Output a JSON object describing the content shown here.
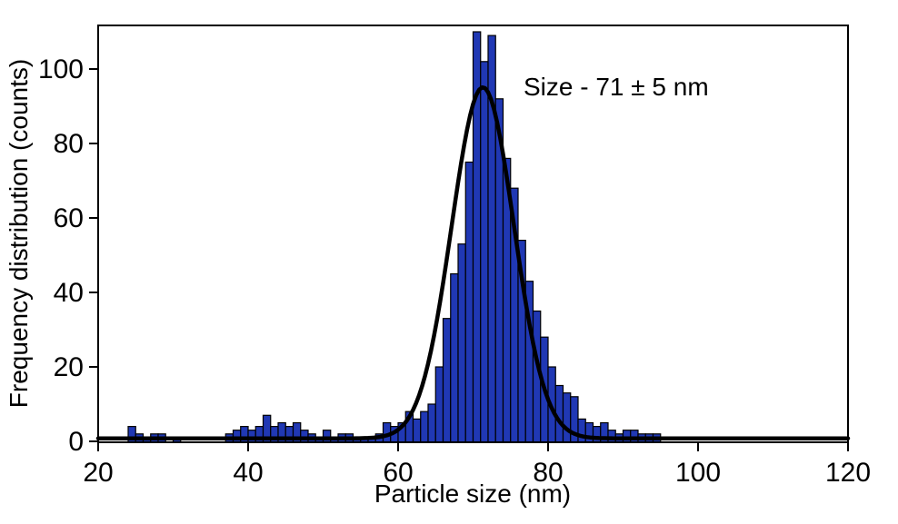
{
  "chart_data": {
    "type": "bar",
    "subtype": "histogram-with-gaussian-fit",
    "title": "",
    "annotation": "Size - 71 ± 5 nm",
    "xlabel": "Particle size (nm)",
    "ylabel": "Frequency distribution (counts)",
    "xlim": [
      20,
      120
    ],
    "ylim": [
      0,
      112
    ],
    "x_ticks": [
      20,
      40,
      60,
      80,
      100,
      120
    ],
    "y_ticks": [
      0,
      20,
      40,
      60,
      80,
      100
    ],
    "grid": false,
    "legend": "none",
    "bin_width_nm": 1,
    "bins": [
      [
        24,
        4
      ],
      [
        25,
        2
      ],
      [
        26,
        1
      ],
      [
        27,
        2
      ],
      [
        28,
        2
      ],
      [
        30,
        1
      ],
      [
        37,
        2
      ],
      [
        38,
        3
      ],
      [
        39,
        4
      ],
      [
        40,
        3
      ],
      [
        41,
        4
      ],
      [
        42,
        7
      ],
      [
        43,
        4
      ],
      [
        44,
        5
      ],
      [
        45,
        4
      ],
      [
        46,
        5
      ],
      [
        47,
        3
      ],
      [
        48,
        2
      ],
      [
        49,
        1
      ],
      [
        50,
        3
      ],
      [
        51,
        1
      ],
      [
        52,
        2
      ],
      [
        53,
        2
      ],
      [
        54,
        1
      ],
      [
        55,
        1
      ],
      [
        56,
        1
      ],
      [
        57,
        2
      ],
      [
        58,
        5
      ],
      [
        59,
        4
      ],
      [
        60,
        5
      ],
      [
        61,
        8
      ],
      [
        62,
        6
      ],
      [
        63,
        8
      ],
      [
        64,
        10
      ],
      [
        65,
        20
      ],
      [
        66,
        33
      ],
      [
        67,
        45
      ],
      [
        68,
        53
      ],
      [
        69,
        75
      ],
      [
        70,
        110
      ],
      [
        71,
        102
      ],
      [
        72,
        109
      ],
      [
        73,
        92
      ],
      [
        74,
        76
      ],
      [
        75,
        68
      ],
      [
        76,
        54
      ],
      [
        77,
        43
      ],
      [
        78,
        35
      ],
      [
        79,
        28
      ],
      [
        80,
        20
      ],
      [
        81,
        15
      ],
      [
        82,
        13
      ],
      [
        83,
        12
      ],
      [
        84,
        6
      ],
      [
        85,
        5
      ],
      [
        86,
        4
      ],
      [
        87,
        5
      ],
      [
        88,
        3
      ],
      [
        89,
        2
      ],
      [
        90,
        3
      ],
      [
        91,
        3
      ],
      [
        92,
        2
      ],
      [
        93,
        2
      ],
      [
        94,
        2
      ]
    ],
    "fit_curve": {
      "type": "gaussian",
      "baseline": 0.8,
      "amplitude": 94.3,
      "center_nm": 71.3,
      "sigma_nm": 4.15
    },
    "colors": {
      "bar_fill": "#2038b4",
      "bar_stroke": "#000000",
      "curve": "#000000",
      "frame": "#000000",
      "background": "#ffffff"
    }
  }
}
